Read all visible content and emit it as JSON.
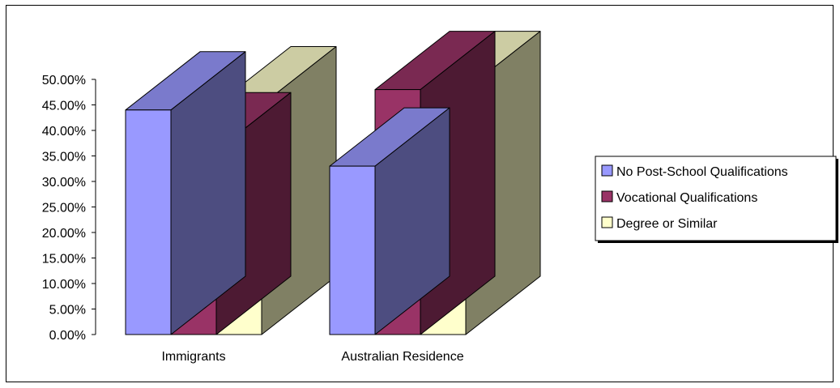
{
  "chart_data": {
    "type": "bar",
    "categories": [
      "Immigrants",
      "Australian Residence"
    ],
    "series": [
      {
        "name": "No Post-School Qualifications",
        "values": [
          44,
          33
        ],
        "color": "#9999FF"
      },
      {
        "name": "Vocational Qualifications",
        "values": [
          36,
          48
        ],
        "color": "#993366"
      },
      {
        "name": "Degree or Similar",
        "values": [
          45,
          48
        ],
        "color": "#FFFFCC"
      }
    ],
    "ylim": [
      0,
      50
    ],
    "ytick_step": 5,
    "ytick_labels": [
      "0.00%",
      "5.00%",
      "10.00%",
      "15.00%",
      "20.00%",
      "25.00%",
      "30.00%",
      "35.00%",
      "40.00%",
      "45.00%",
      "50.00%"
    ],
    "title": "",
    "xlabel": "",
    "ylabel": "",
    "style": "3d-clustered-column",
    "legend_position": "right",
    "grid": false
  }
}
